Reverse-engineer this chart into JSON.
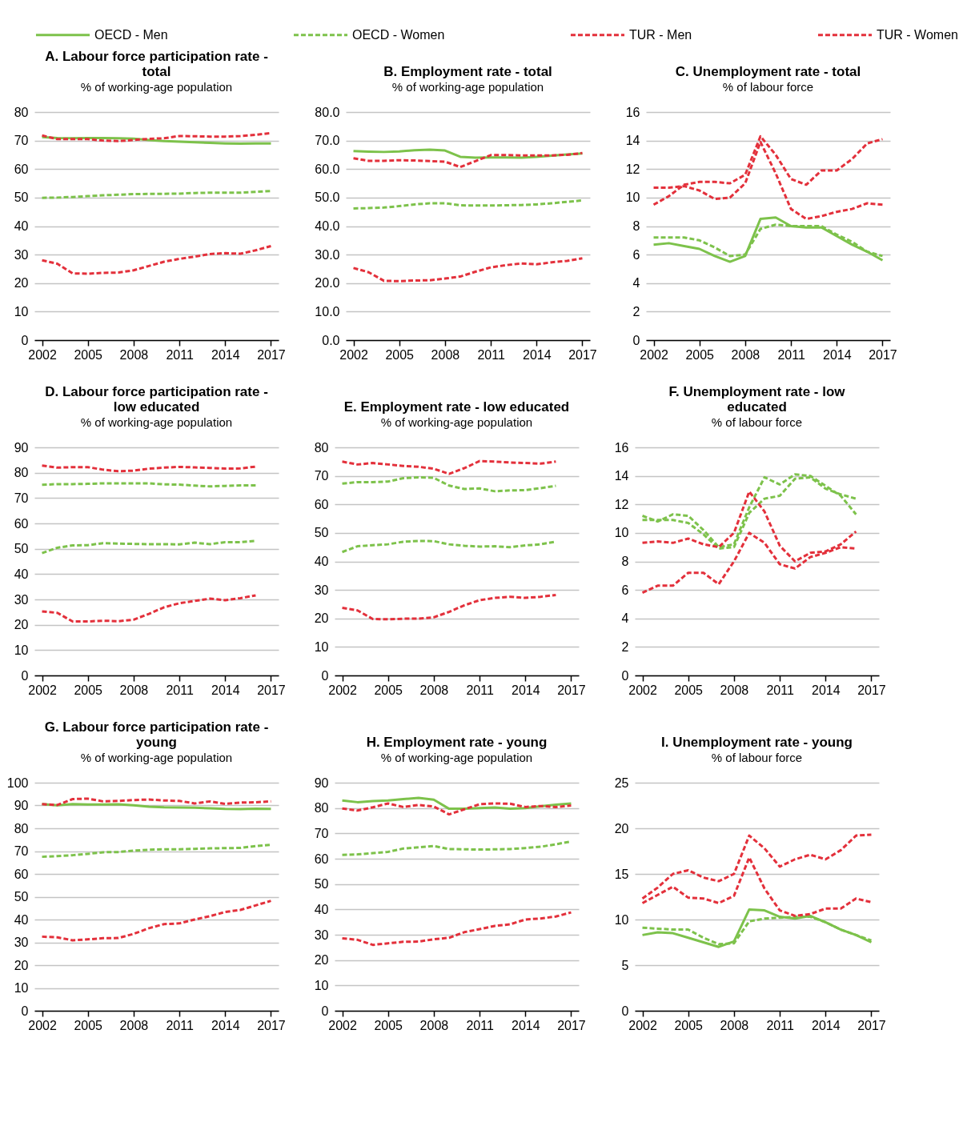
{
  "chart_data": [
    {
      "type": "line",
      "title": "A. Labour force participation rate - total",
      "subtitle": "% of working-age population",
      "legend": "top",
      "grid": "y",
      "x": [
        2002,
        2003,
        2004,
        2005,
        2006,
        2007,
        2008,
        2009,
        2010,
        2011,
        2012,
        2013,
        2014,
        2015,
        2016,
        2017
      ],
      "xlim": [
        2001.5,
        2017.5
      ],
      "xticks": [
        2002,
        2005,
        2008,
        2011,
        2014,
        2017
      ],
      "ylim": [
        0,
        80
      ],
      "yticks": [
        0,
        10,
        20,
        30,
        40,
        50,
        60,
        70,
        80
      ],
      "series": [
        {
          "name": "OECD - Men",
          "color": "#7dc24b",
          "line_style": "solid",
          "values": [
            71.2,
            70.9,
            70.8,
            70.9,
            70.9,
            70.8,
            70.7,
            70.2,
            69.8,
            69.6,
            69.4,
            69.2,
            69.0,
            68.9,
            69.0,
            69.0
          ]
        },
        {
          "name": "OECD - Women",
          "color": "#7dc24b",
          "line_style": "dashed",
          "values": [
            49.9,
            50.0,
            50.2,
            50.5,
            50.8,
            51.0,
            51.2,
            51.3,
            51.3,
            51.4,
            51.6,
            51.7,
            51.7,
            51.7,
            52.0,
            52.3
          ]
        },
        {
          "name": "TUR - Men",
          "color": "#e3303b",
          "line_style": "dashed",
          "values": [
            71.8,
            70.5,
            70.5,
            70.5,
            70.0,
            69.8,
            70.2,
            70.6,
            70.8,
            71.6,
            71.5,
            71.4,
            71.4,
            71.6,
            72.0,
            72.6
          ]
        },
        {
          "name": "TUR - Women",
          "color": "#e3303b",
          "line_style": "dashed",
          "values": [
            28.0,
            26.8,
            23.4,
            23.3,
            23.6,
            23.7,
            24.5,
            26.0,
            27.5,
            28.5,
            29.3,
            30.2,
            30.5,
            30.3,
            31.5,
            33.0
          ]
        }
      ]
    },
    {
      "type": "line",
      "title": "B. Employment rate - total",
      "subtitle": "% of working-age population",
      "grid": "y",
      "x": [
        2002,
        2003,
        2004,
        2005,
        2006,
        2007,
        2008,
        2009,
        2010,
        2011,
        2012,
        2013,
        2014,
        2015,
        2016,
        2017
      ],
      "xlim": [
        2001.5,
        2017.5
      ],
      "xticks": [
        2002,
        2005,
        2008,
        2011,
        2014,
        2017
      ],
      "ylim": [
        0,
        80
      ],
      "yticks": [
        {
          "value": 0,
          "label": "0.0"
        },
        {
          "value": 10,
          "label": "10.0"
        },
        {
          "value": 20,
          "label": "20.0"
        },
        {
          "value": 30,
          "label": "30.0"
        },
        {
          "value": 40,
          "label": "40.0"
        },
        {
          "value": 50,
          "label": "50.0"
        },
        {
          "value": 60,
          "label": "60.0"
        },
        {
          "value": 70,
          "label": "70.0"
        },
        {
          "value": 80,
          "label": "80.0"
        }
      ],
      "series": [
        {
          "name": "OECD - Men",
          "color": "#7dc24b",
          "line_style": "solid",
          "values": [
            66.3,
            66.1,
            66.0,
            66.2,
            66.6,
            66.8,
            66.5,
            64.3,
            64.0,
            64.1,
            64.1,
            64.0,
            64.3,
            64.7,
            65.1,
            65.5
          ]
        },
        {
          "name": "OECD - Women",
          "color": "#7dc24b",
          "line_style": "dashed",
          "values": [
            46.2,
            46.3,
            46.5,
            47.0,
            47.6,
            48.0,
            48.0,
            47.3,
            47.2,
            47.2,
            47.3,
            47.4,
            47.6,
            48.0,
            48.5,
            49.0
          ]
        },
        {
          "name": "TUR - Men",
          "color": "#e3303b",
          "line_style": "dashed",
          "values": [
            63.8,
            62.9,
            62.9,
            63.1,
            63.0,
            62.8,
            62.6,
            60.7,
            62.8,
            64.9,
            64.9,
            64.8,
            64.8,
            64.8,
            65.0,
            65.6
          ]
        },
        {
          "name": "TUR - Women",
          "color": "#e3303b",
          "line_style": "dashed",
          "values": [
            25.3,
            23.8,
            20.8,
            20.7,
            20.9,
            21.0,
            21.6,
            22.3,
            24.0,
            25.5,
            26.3,
            26.9,
            26.6,
            27.3,
            27.8,
            28.7
          ]
        }
      ]
    },
    {
      "type": "line",
      "title": "C. Unemployment rate - total",
      "subtitle": "% of labour force",
      "grid": "y",
      "x": [
        2002,
        2003,
        2004,
        2005,
        2006,
        2007,
        2008,
        2009,
        2010,
        2011,
        2012,
        2013,
        2014,
        2015,
        2016,
        2017
      ],
      "xlim": [
        2001.5,
        2017.5
      ],
      "xticks": [
        2002,
        2005,
        2008,
        2011,
        2014,
        2017
      ],
      "ylim": [
        0,
        16
      ],
      "yticks": [
        0,
        2,
        4,
        6,
        8,
        10,
        12,
        14,
        16
      ],
      "series": [
        {
          "name": "OECD - Men",
          "color": "#7dc24b",
          "line_style": "solid",
          "values": [
            6.7,
            6.8,
            6.6,
            6.4,
            5.9,
            5.5,
            5.9,
            8.5,
            8.6,
            8.0,
            7.9,
            7.9,
            7.3,
            6.7,
            6.2,
            5.6
          ]
        },
        {
          "name": "OECD - Women",
          "color": "#7dc24b",
          "line_style": "dashed",
          "values": [
            7.2,
            7.2,
            7.2,
            7.0,
            6.5,
            5.9,
            6.0,
            7.8,
            8.1,
            8.0,
            8.0,
            8.0,
            7.4,
            6.9,
            6.2,
            5.9
          ]
        },
        {
          "name": "TUR - Men",
          "color": "#e3303b",
          "line_style": "dashed",
          "values": [
            10.7,
            10.7,
            10.8,
            10.5,
            9.9,
            10.0,
            11.0,
            13.9,
            11.7,
            9.2,
            8.5,
            8.7,
            9.0,
            9.2,
            9.6,
            9.5
          ]
        },
        {
          "name": "TUR - Women",
          "color": "#e3303b",
          "line_style": "dashed",
          "values": [
            9.5,
            10.1,
            10.9,
            11.1,
            11.1,
            11.0,
            11.6,
            14.3,
            13.0,
            11.3,
            10.9,
            11.9,
            11.9,
            12.7,
            13.8,
            14.1
          ]
        }
      ]
    },
    {
      "type": "line",
      "title": "D. Labour force participation rate - low educated",
      "subtitle": "% of working-age population",
      "grid": "y",
      "x": [
        2002,
        2003,
        2004,
        2005,
        2006,
        2007,
        2008,
        2009,
        2010,
        2011,
        2012,
        2013,
        2014,
        2015,
        2016
      ],
      "xlim": [
        2001.5,
        2017.5
      ],
      "xticks": [
        2002,
        2005,
        2008,
        2011,
        2014,
        2017
      ],
      "ylim": [
        0,
        90
      ],
      "yticks": [
        0,
        10,
        20,
        30,
        40,
        50,
        60,
        70,
        80,
        90
      ],
      "series": [
        {
          "name": "OECD - Men",
          "color": "#7dc24b",
          "line_style": "dashed",
          "values": [
            75.2,
            75.5,
            75.5,
            75.6,
            75.8,
            75.8,
            75.8,
            75.8,
            75.4,
            75.3,
            74.9,
            74.6,
            74.8,
            75.0,
            75.0
          ]
        },
        {
          "name": "OECD - Women",
          "color": "#7dc24b",
          "line_style": "dashed",
          "values": [
            48.3,
            50.4,
            51.3,
            51.4,
            52.2,
            52.0,
            51.9,
            51.8,
            51.8,
            51.7,
            52.4,
            51.8,
            52.6,
            52.6,
            53.1
          ]
        },
        {
          "name": "TUR - Men",
          "color": "#e3303b",
          "line_style": "dashed",
          "values": [
            82.8,
            82.0,
            82.2,
            82.2,
            81.2,
            80.6,
            80.8,
            81.6,
            82.0,
            82.3,
            82.1,
            81.9,
            81.6,
            81.7,
            82.4
          ]
        },
        {
          "name": "TUR - Women",
          "color": "#e3303b",
          "line_style": "dashed",
          "values": [
            25.3,
            24.7,
            21.3,
            21.3,
            21.6,
            21.4,
            22.0,
            24.3,
            26.9,
            28.5,
            29.4,
            30.3,
            29.7,
            30.5,
            31.6
          ]
        }
      ]
    },
    {
      "type": "line",
      "title": "E. Employment rate - low educated",
      "subtitle": "% of working-age population",
      "grid": "y",
      "x": [
        2002,
        2003,
        2004,
        2005,
        2006,
        2007,
        2008,
        2009,
        2010,
        2011,
        2012,
        2013,
        2014,
        2015,
        2016
      ],
      "xlim": [
        2001.5,
        2017.5
      ],
      "xticks": [
        2002,
        2005,
        2008,
        2011,
        2014,
        2017
      ],
      "ylim": [
        0,
        80
      ],
      "yticks": [
        0,
        10,
        20,
        30,
        40,
        50,
        60,
        70,
        80
      ],
      "series": [
        {
          "name": "OECD - Men",
          "color": "#7dc24b",
          "line_style": "dashed",
          "values": [
            67.3,
            67.8,
            67.8,
            68.0,
            69.2,
            69.5,
            69.3,
            66.6,
            65.4,
            65.6,
            64.6,
            64.9,
            65.0,
            65.7,
            66.5
          ]
        },
        {
          "name": "OECD - Women",
          "color": "#7dc24b",
          "line_style": "dashed",
          "values": [
            43.3,
            45.3,
            45.7,
            46.0,
            46.9,
            47.2,
            47.1,
            46.0,
            45.5,
            45.2,
            45.3,
            45.0,
            45.6,
            46.0,
            46.9
          ]
        },
        {
          "name": "TUR - Men",
          "color": "#e3303b",
          "line_style": "dashed",
          "values": [
            75.0,
            74.0,
            74.5,
            74.0,
            73.5,
            73.2,
            72.5,
            70.7,
            72.7,
            75.2,
            75.0,
            74.7,
            74.5,
            74.3,
            75.0
          ]
        },
        {
          "name": "TUR - Women",
          "color": "#e3303b",
          "line_style": "dashed",
          "values": [
            23.7,
            22.8,
            19.8,
            19.7,
            19.9,
            19.9,
            20.4,
            22.3,
            24.6,
            26.4,
            27.2,
            27.6,
            27.2,
            27.6,
            28.2
          ]
        }
      ]
    },
    {
      "type": "line",
      "title": "F. Unemployment rate - low educated",
      "subtitle": "% of labour force",
      "grid": "y",
      "x": [
        2002,
        2003,
        2004,
        2005,
        2006,
        2007,
        2008,
        2009,
        2010,
        2011,
        2012,
        2013,
        2014,
        2015,
        2016
      ],
      "xlim": [
        2001.5,
        2017.5
      ],
      "xticks": [
        2002,
        2005,
        2008,
        2011,
        2014,
        2017
      ],
      "ylim": [
        0,
        16
      ],
      "yticks": [
        0,
        2,
        4,
        6,
        8,
        10,
        12,
        14,
        16
      ],
      "series": [
        {
          "name": "OECD - Men",
          "color": "#7dc24b",
          "line_style": "dashed",
          "values": [
            11.2,
            10.8,
            11.3,
            11.2,
            10.2,
            9.0,
            9.2,
            11.8,
            13.9,
            13.4,
            14.1,
            14.0,
            13.3,
            12.6,
            11.3
          ]
        },
        {
          "name": "OECD - Women",
          "color": "#7dc24b",
          "line_style": "dashed",
          "values": [
            10.9,
            10.9,
            10.9,
            10.7,
            9.9,
            8.9,
            9.0,
            11.4,
            12.4,
            12.6,
            13.8,
            13.9,
            13.1,
            12.7,
            12.4
          ]
        },
        {
          "name": "TUR - Men",
          "color": "#e3303b",
          "line_style": "dashed",
          "values": [
            9.3,
            9.4,
            9.3,
            9.6,
            9.2,
            9.0,
            10.0,
            12.9,
            11.5,
            9.1,
            8.0,
            8.6,
            8.7,
            9.2,
            10.1
          ]
        },
        {
          "name": "TUR - Women",
          "color": "#e3303b",
          "line_style": "dashed",
          "values": [
            5.8,
            6.3,
            6.3,
            7.2,
            7.2,
            6.4,
            8.0,
            10.0,
            9.3,
            7.8,
            7.5,
            8.3,
            8.6,
            9.0,
            8.9
          ]
        }
      ]
    },
    {
      "type": "line",
      "title": "G. Labour force participation rate - young",
      "subtitle": "% of working-age population",
      "grid": "y",
      "x": [
        2002,
        2003,
        2004,
        2005,
        2006,
        2007,
        2008,
        2009,
        2010,
        2011,
        2012,
        2013,
        2014,
        2015,
        2016,
        2017
      ],
      "xlim": [
        2001.5,
        2017.5
      ],
      "xticks": [
        2002,
        2005,
        2008,
        2011,
        2014,
        2017
      ],
      "ylim": [
        0,
        100
      ],
      "yticks": [
        0,
        10,
        20,
        30,
        40,
        50,
        60,
        70,
        80,
        90,
        100
      ],
      "series": [
        {
          "name": "OECD - Men",
          "color": "#7dc24b",
          "line_style": "solid",
          "values": [
            90.6,
            90.1,
            90.6,
            90.4,
            90.4,
            90.5,
            90.1,
            89.5,
            89.2,
            89.1,
            89.0,
            88.8,
            88.5,
            88.4,
            88.6,
            88.5
          ]
        },
        {
          "name": "OECD - Women",
          "color": "#7dc24b",
          "line_style": "dashed",
          "values": [
            67.5,
            67.8,
            68.2,
            68.8,
            69.5,
            69.6,
            70.2,
            70.6,
            70.8,
            70.8,
            71.0,
            71.2,
            71.3,
            71.4,
            72.2,
            72.8
          ]
        },
        {
          "name": "TUR - Men",
          "color": "#e3303b",
          "line_style": "dashed",
          "values": [
            90.6,
            90.2,
            92.8,
            93.0,
            91.8,
            92.0,
            92.4,
            92.6,
            92.2,
            92.0,
            90.9,
            91.8,
            90.7,
            91.3,
            91.4,
            91.8
          ]
        },
        {
          "name": "TUR - Women",
          "color": "#e3303b",
          "line_style": "dashed",
          "values": [
            32.5,
            32.2,
            30.9,
            31.3,
            31.8,
            31.9,
            33.7,
            36.2,
            38.0,
            38.3,
            40.0,
            41.5,
            43.3,
            44.2,
            46.2,
            48.2
          ]
        }
      ]
    },
    {
      "type": "line",
      "title": "H. Employment rate - young",
      "subtitle": "% of working-age population",
      "grid": "y",
      "x": [
        2002,
        2003,
        2004,
        2005,
        2006,
        2007,
        2008,
        2009,
        2010,
        2011,
        2012,
        2013,
        2014,
        2015,
        2016,
        2017
      ],
      "xlim": [
        2001.5,
        2017.5
      ],
      "xticks": [
        2002,
        2005,
        2008,
        2011,
        2014,
        2017
      ],
      "ylim": [
        0,
        90
      ],
      "yticks": [
        0,
        10,
        20,
        30,
        40,
        50,
        60,
        70,
        80,
        90
      ],
      "series": [
        {
          "name": "OECD - Men",
          "color": "#7dc24b",
          "line_style": "solid",
          "values": [
            83.0,
            82.3,
            82.7,
            83.0,
            83.5,
            84.0,
            83.3,
            79.7,
            79.7,
            80.0,
            80.2,
            79.7,
            80.0,
            80.7,
            81.3,
            81.8
          ]
        },
        {
          "name": "OECD - Women",
          "color": "#7dc24b",
          "line_style": "dashed",
          "values": [
            61.5,
            61.7,
            62.2,
            62.7,
            64.0,
            64.5,
            65.0,
            63.8,
            63.7,
            63.6,
            63.7,
            63.8,
            64.2,
            64.7,
            65.7,
            66.8
          ]
        },
        {
          "name": "TUR - Men",
          "color": "#e3303b",
          "line_style": "dashed",
          "values": [
            79.8,
            79.0,
            80.3,
            81.8,
            80.4,
            81.2,
            80.6,
            77.5,
            79.5,
            81.5,
            81.8,
            81.7,
            80.4,
            80.8,
            80.4,
            81.0
          ]
        },
        {
          "name": "TUR - Women",
          "color": "#e3303b",
          "line_style": "dashed",
          "values": [
            28.6,
            28.0,
            26.0,
            26.6,
            27.2,
            27.3,
            28.2,
            28.8,
            31.0,
            32.2,
            33.5,
            34.1,
            36.0,
            36.4,
            37.2,
            38.8
          ]
        }
      ]
    },
    {
      "type": "line",
      "title": "I. Unemployment rate - young",
      "subtitle": "% of labour force",
      "grid": "y",
      "x": [
        2002,
        2003,
        2004,
        2005,
        2006,
        2007,
        2008,
        2009,
        2010,
        2011,
        2012,
        2013,
        2014,
        2015,
        2016,
        2017
      ],
      "xlim": [
        2001.5,
        2017.5
      ],
      "xticks": [
        2002,
        2005,
        2008,
        2011,
        2014,
        2017
      ],
      "ylim": [
        0,
        25
      ],
      "yticks": [
        0,
        5,
        10,
        15,
        20,
        25
      ],
      "series": [
        {
          "name": "OECD - Men",
          "color": "#7dc24b",
          "line_style": "solid",
          "values": [
            8.3,
            8.6,
            8.5,
            8.0,
            7.5,
            7.0,
            7.6,
            11.1,
            11.0,
            10.3,
            10.1,
            10.4,
            9.7,
            8.9,
            8.3,
            7.5
          ]
        },
        {
          "name": "OECD - Women",
          "color": "#7dc24b",
          "line_style": "dashed",
          "values": [
            9.1,
            9.0,
            8.9,
            8.9,
            8.0,
            7.3,
            7.4,
            9.8,
            10.1,
            10.2,
            10.3,
            10.3,
            9.7,
            8.9,
            8.3,
            7.7
          ]
        },
        {
          "name": "TUR - Men",
          "color": "#e3303b",
          "line_style": "dashed",
          "values": [
            11.8,
            12.7,
            13.6,
            12.4,
            12.3,
            11.8,
            12.6,
            16.8,
            13.4,
            11.0,
            10.4,
            10.6,
            11.2,
            11.2,
            12.3,
            11.9
          ]
        },
        {
          "name": "TUR - Women",
          "color": "#e3303b",
          "line_style": "dashed",
          "values": [
            12.3,
            13.5,
            15.0,
            15.4,
            14.6,
            14.2,
            15.0,
            19.2,
            17.8,
            15.8,
            16.6,
            17.1,
            16.6,
            17.6,
            19.2,
            19.3
          ]
        }
      ]
    }
  ]
}
